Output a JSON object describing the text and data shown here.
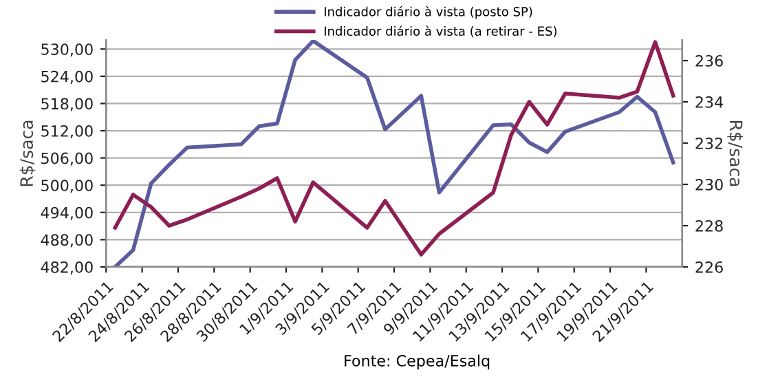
{
  "chart_data": {
    "type": "line",
    "ylabel": "R$/saca",
    "y2label": "R$/saca",
    "annotations": [
      "Fonte: Cepea/Esalq"
    ],
    "legend": "top",
    "grid": "y",
    "marker": "none",
    "line_style": "solid",
    "xlim": [
      "2011-08-22",
      "2011-09-23"
    ],
    "xticks": [
      {
        "value": "2011-08-22",
        "label": "22/8/2011"
      },
      {
        "value": "2011-08-24",
        "label": "24/8/2011"
      },
      {
        "value": "2011-08-26",
        "label": "26/8/2011"
      },
      {
        "value": "2011-08-28",
        "label": "28/8/2011"
      },
      {
        "value": "2011-08-30",
        "label": "30/8/2011"
      },
      {
        "value": "2011-09-01",
        "label": "1/9/2011"
      },
      {
        "value": "2011-09-03",
        "label": "3/9/2011"
      },
      {
        "value": "2011-09-05",
        "label": "5/9/2011"
      },
      {
        "value": "2011-09-07",
        "label": "7/9/2011"
      },
      {
        "value": "2011-09-09",
        "label": "9/9/2011"
      },
      {
        "value": "2011-09-11",
        "label": "11/9/2011"
      },
      {
        "value": "2011-09-13",
        "label": "13/9/2011"
      },
      {
        "value": "2011-09-15",
        "label": "15/9/2011"
      },
      {
        "value": "2011-09-17",
        "label": "17/9/2011"
      },
      {
        "value": "2011-09-19",
        "label": "19/9/2011"
      },
      {
        "value": "2011-09-21",
        "label": "21/9/2011"
      }
    ],
    "ylim": [
      482,
      532
    ],
    "yticks": [
      {
        "value": 482,
        "label": "482,00"
      },
      {
        "value": 488,
        "label": "488,00"
      },
      {
        "value": 494,
        "label": "494,00"
      },
      {
        "value": 500,
        "label": "500,00"
      },
      {
        "value": 506,
        "label": "506,00"
      },
      {
        "value": 512,
        "label": "512,00"
      },
      {
        "value": 518,
        "label": "518,00"
      },
      {
        "value": 524,
        "label": "524,00"
      },
      {
        "value": 530,
        "label": "530,00"
      }
    ],
    "y2lim": [
      226,
      237
    ],
    "y2ticks": [
      226,
      228,
      230,
      232,
      234,
      236
    ],
    "x": [
      "2011-08-22T12:00",
      "2011-08-23T12:00",
      "2011-08-24T12:00",
      "2011-08-25T12:00",
      "2011-08-26T12:00",
      "2011-08-29T12:00",
      "2011-08-30T12:00",
      "2011-08-31T12:00",
      "2011-09-01T12:00",
      "2011-09-02T12:00",
      "2011-09-05T12:00",
      "2011-09-06T12:00",
      "2011-09-08T12:00",
      "2011-09-09T12:00",
      "2011-09-12T12:00",
      "2011-09-13T12:00",
      "2011-09-14T12:00",
      "2011-09-15T12:00",
      "2011-09-16T12:00",
      "2011-09-19T12:00",
      "2011-09-20T12:00",
      "2011-09-21T12:00",
      "2011-09-22T12:00"
    ],
    "series": [
      {
        "name": "Indicador diário à vista (posto SP)",
        "color": "#5b5b9e",
        "values": [
          482,
          485.7,
          500.4,
          504.5,
          508.3,
          509.0,
          513.0,
          513.6,
          527.6,
          531.8,
          523.7,
          512.3,
          519.7,
          498.4,
          513.2,
          513.4,
          509.4,
          507.3,
          511.8,
          516.1,
          519.5,
          516.1,
          505.0
        ]
      },
      {
        "name": "Indicador diário à vista (a retirar - ES)",
        "color": "#8e1f52",
        "axis": "y2",
        "values": [
          227.9,
          229.5,
          228.9,
          228.0,
          228.3,
          229.4,
          229.8,
          230.3,
          228.2,
          230.1,
          227.9,
          229.2,
          226.6,
          227.6,
          229.6,
          232.4,
          234.0,
          232.9,
          234.4,
          234.2,
          234.5,
          236.9,
          234.3
        ]
      }
    ]
  }
}
